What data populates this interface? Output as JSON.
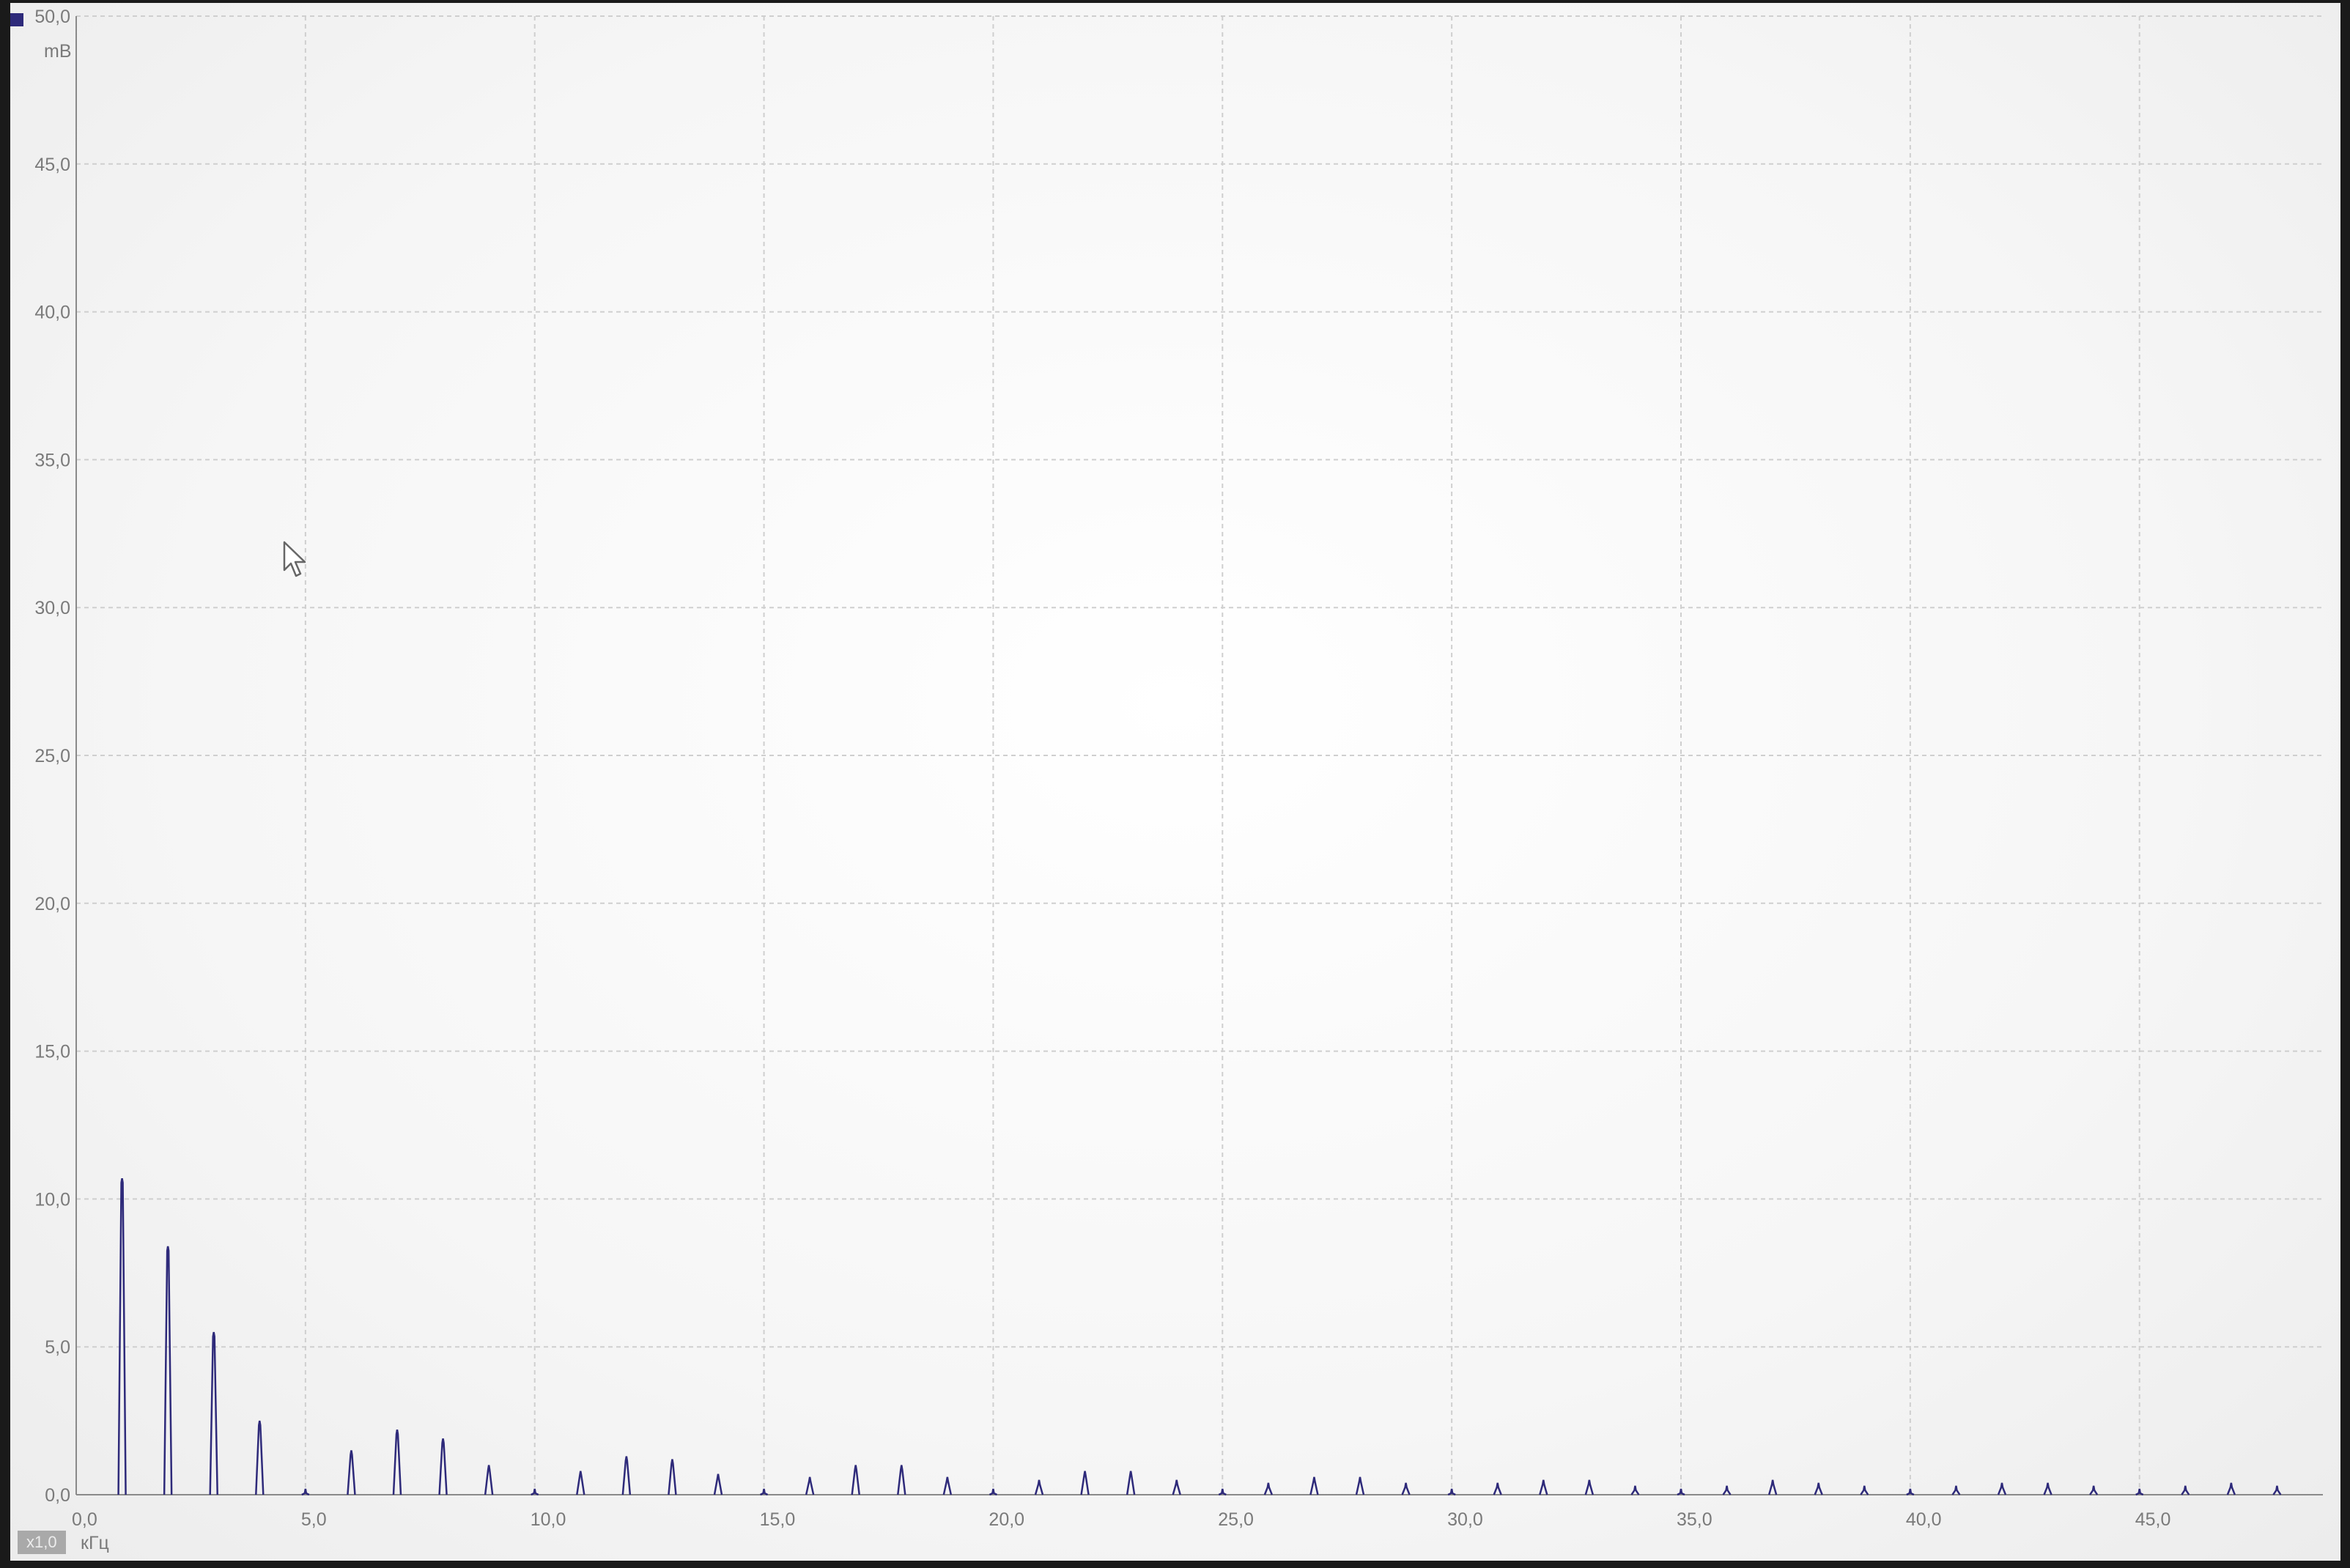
{
  "app": {
    "scale_label": "x1,0",
    "y_unit": "mB",
    "x_unit": "кГц"
  },
  "colors": {
    "series": "#2e2a7a",
    "grid": "#cfcfcf",
    "axis": "#8a8a8a"
  },
  "chart_data": {
    "type": "line",
    "title": "",
    "xlabel": "кГц",
    "ylabel": "mB",
    "xlim": [
      0,
      49
    ],
    "ylim": [
      0,
      50
    ],
    "grid": true,
    "x_ticks": [
      0,
      5,
      10,
      15,
      20,
      25,
      30,
      35,
      40,
      45
    ],
    "x_tick_labels": [
      "0,0",
      "5,0",
      "10,0",
      "15,0",
      "20,0",
      "25,0",
      "30,0",
      "35,0",
      "40,0",
      "45,0"
    ],
    "y_ticks": [
      0,
      5,
      10,
      15,
      20,
      25,
      30,
      35,
      40,
      45,
      50
    ],
    "y_tick_labels": [
      "0,0",
      "5,0",
      "10,0",
      "15,0",
      "20,0",
      "25,0",
      "30,0",
      "35,0",
      "40,0",
      "45,0",
      "50,0"
    ],
    "series": [
      {
        "x": [
          1,
          2,
          3,
          4,
          5,
          6,
          7,
          8,
          9,
          10,
          11,
          12,
          13,
          14,
          15,
          16,
          17,
          18,
          19,
          20,
          21,
          22,
          23,
          24,
          25,
          26,
          27,
          28,
          29,
          30,
          31,
          32,
          33,
          34,
          35,
          36,
          37,
          38,
          39,
          40,
          41,
          42,
          43,
          44,
          45,
          46,
          47,
          48
        ],
        "values": [
          10.7,
          8.4,
          5.5,
          2.5,
          0.2,
          1.5,
          2.2,
          1.9,
          1.0,
          0.2,
          0.8,
          1.3,
          1.2,
          0.7,
          0.2,
          0.6,
          1.0,
          1.0,
          0.6,
          0.2,
          0.5,
          0.8,
          0.8,
          0.5,
          0.2,
          0.4,
          0.6,
          0.6,
          0.4,
          0.2,
          0.4,
          0.5,
          0.5,
          0.3,
          0.2,
          0.3,
          0.5,
          0.4,
          0.3,
          0.2,
          0.3,
          0.4,
          0.4,
          0.3,
          0.2,
          0.3,
          0.4,
          0.3
        ]
      }
    ]
  }
}
